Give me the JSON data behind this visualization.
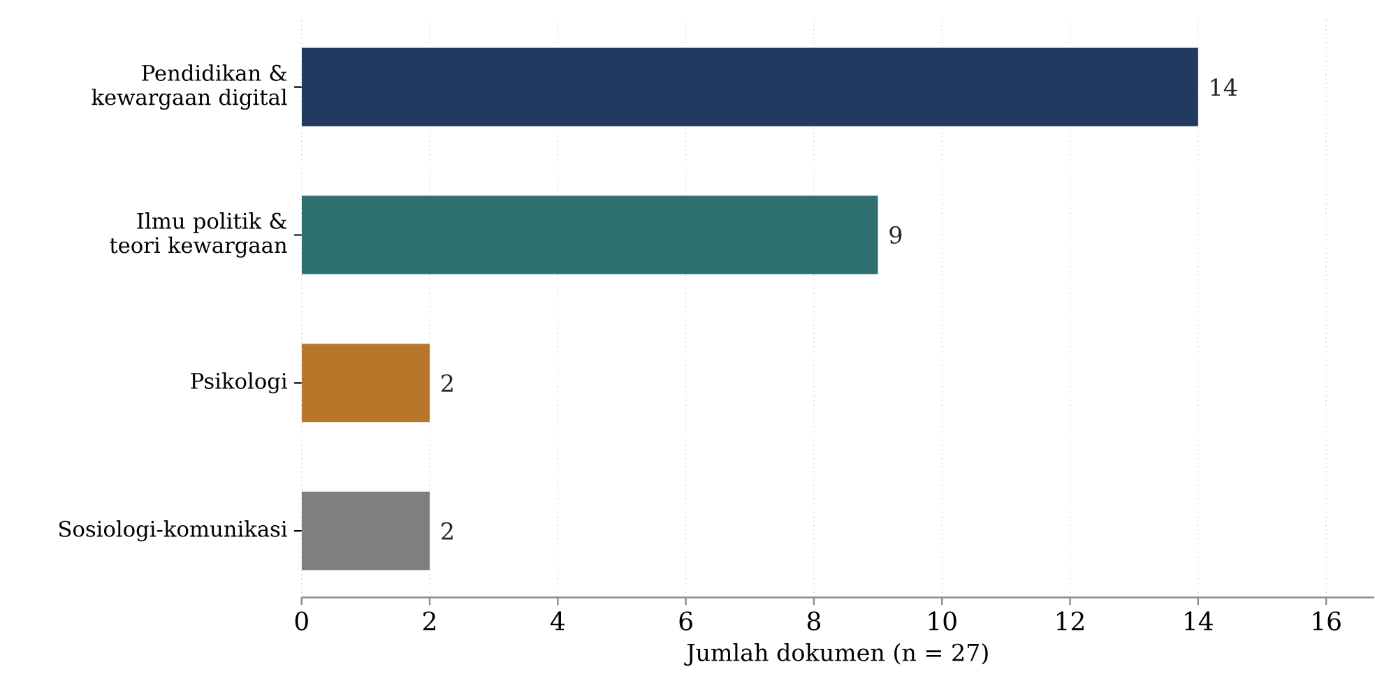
{
  "chart_data": {
    "type": "bar",
    "orientation": "horizontal",
    "categories": [
      "Pendidikan & kewargaan digital",
      "Ilmu politik & teori kewargaan",
      "Psikologi",
      "Sosiologi-komunikasi"
    ],
    "values": [
      14,
      9,
      2,
      2
    ],
    "colors": [
      "#223962",
      "#2e7070",
      "#b8762b",
      "#7f7f7f"
    ],
    "xlabel": "Jumlah dokumen (n = 27)",
    "xlim": [
      0,
      16.75
    ],
    "xticks": [
      0,
      2,
      4,
      6,
      8,
      10,
      12,
      14,
      16
    ],
    "grid": "x",
    "data_labels": true
  }
}
